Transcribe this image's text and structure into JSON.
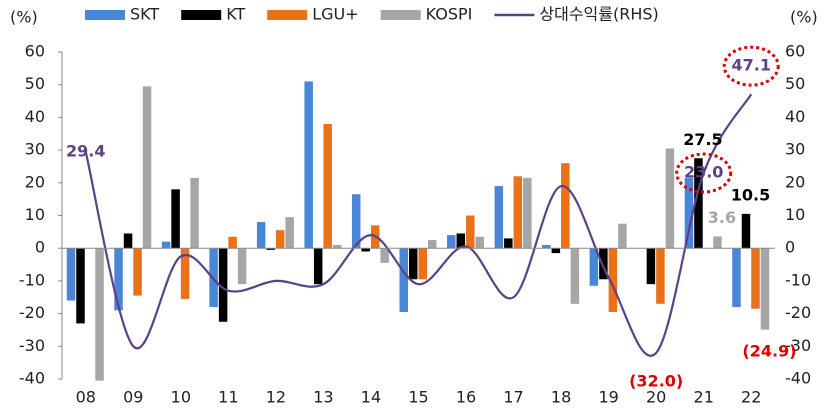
{
  "chart_data": {
    "type": "bar",
    "unit_left": "(%)",
    "unit_right": "(%)",
    "categories": [
      "08",
      "09",
      "10",
      "11",
      "12",
      "13",
      "14",
      "15",
      "16",
      "17",
      "18",
      "19",
      "20",
      "21",
      "22"
    ],
    "series": [
      {
        "name": "SKT",
        "color": "#4a86d8",
        "values": [
          -16,
          -19,
          2,
          -18,
          8,
          51,
          16.5,
          -19.5,
          4,
          19,
          1,
          -11.5,
          0,
          21.5,
          -18
        ]
      },
      {
        "name": "KT",
        "color": "#000000",
        "values": [
          -23,
          4.5,
          18,
          -22.5,
          -0.5,
          -11,
          -1,
          -9.5,
          4.5,
          3,
          -1.5,
          -9.5,
          -11,
          27.5,
          10.5
        ],
        "value_labels": [
          null,
          null,
          null,
          null,
          null,
          null,
          null,
          null,
          null,
          null,
          null,
          null,
          null,
          "27.5",
          "10.5"
        ]
      },
      {
        "name": "LGU+",
        "color": "#e8711a",
        "values": [
          0,
          -14.5,
          -15.5,
          3.5,
          5.5,
          38,
          7,
          -9.5,
          10,
          22,
          26,
          -19.5,
          -17,
          0,
          -18.5
        ]
      },
      {
        "name": "KOSPI",
        "color": "#a6a6a6",
        "values": [
          -40.5,
          49.5,
          21.5,
          -11,
          9.5,
          1,
          -4.5,
          2.5,
          3.5,
          21.5,
          -17,
          7.5,
          30.5,
          3.6,
          -24.9
        ],
        "value_labels": [
          null,
          null,
          null,
          null,
          null,
          null,
          null,
          null,
          null,
          null,
          null,
          null,
          null,
          "3.6",
          "(24.9)"
        ]
      },
      {
        "name": "상대수익률(RHS)",
        "color": "#5b4286",
        "type": "line",
        "axis": "y2",
        "values": [
          29.4,
          -30,
          -2.5,
          -13,
          -10,
          -11,
          4,
          -11,
          0.5,
          -15,
          19,
          -9,
          -32.0,
          23.0,
          47.1
        ],
        "value_labels": [
          "29.4",
          null,
          null,
          null,
          null,
          null,
          null,
          null,
          null,
          null,
          null,
          null,
          "(32.0)",
          "23.0",
          "47.1"
        ]
      }
    ],
    "ylim": [
      -40,
      60
    ],
    "yticks": [
      -40,
      -30,
      -20,
      -10,
      0,
      10,
      20,
      30,
      40,
      50,
      60
    ],
    "y2lim": [
      -40,
      60
    ],
    "y2ticks": [
      -40,
      -30,
      -20,
      -10,
      0,
      10,
      20,
      30,
      40,
      50,
      60
    ]
  }
}
